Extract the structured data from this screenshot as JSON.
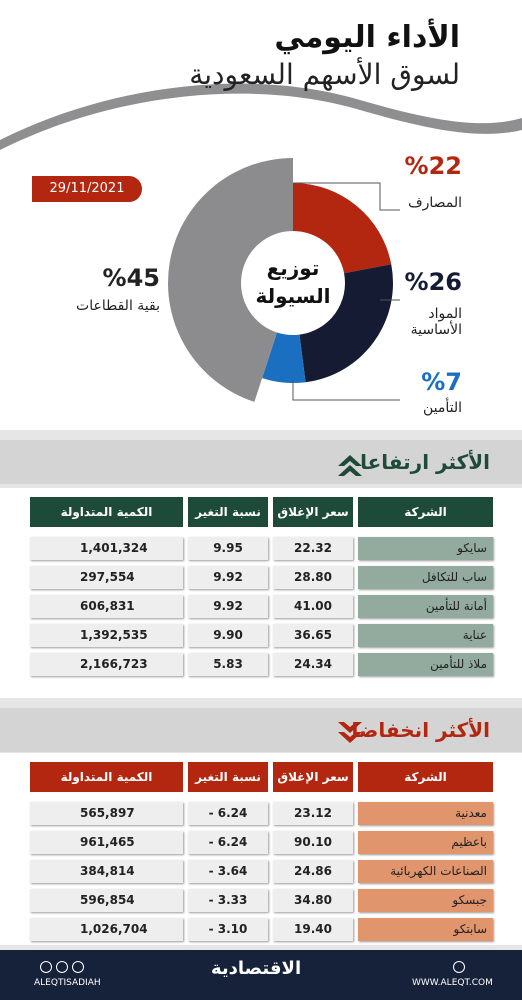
{
  "header": {
    "title": "الأداء اليومي",
    "subtitle": "لسوق الأسهم السعودية",
    "date": "29/11/2021"
  },
  "chart_data": {
    "type": "pie",
    "center_label": [
      "توزيع",
      "السيولة"
    ],
    "categories": [
      "المصارف",
      "المواد الأساسية",
      "التأمين",
      "بقية القطاعات"
    ],
    "values": [
      22,
      26,
      7,
      45
    ],
    "value_labels": [
      "%22",
      "%26",
      "%7",
      "%45"
    ],
    "colors": [
      "#b3260f",
      "#151b33",
      "#1a6fc0",
      "#8c8c8e"
    ]
  },
  "gainers": {
    "title": "الأكثر ارتفاعا",
    "columns": [
      "الكمية المتداولة",
      "نسبة التغير %",
      "سعر الإغلاق",
      "الشركة"
    ],
    "rows": [
      [
        "1,401,324",
        "9.95",
        "22.32",
        "سايكو"
      ],
      [
        "297,554",
        "9.92",
        "28.80",
        "ساب للتكافل"
      ],
      [
        "606,831",
        "9.92",
        "41.00",
        "أمانة للتأمين"
      ],
      [
        "1,392,535",
        "9.90",
        "36.65",
        "عناية"
      ],
      [
        "2,166,723",
        "5.83",
        "24.34",
        "ملاذ للتأمين"
      ]
    ]
  },
  "losers": {
    "title": "الأكثر انخفاضا",
    "columns": [
      "الكمية المتداولة",
      "نسبة التغير %",
      "سعر الإغلاق",
      "الشركة"
    ],
    "rows": [
      [
        "565,897",
        "- 6.24",
        "23.12",
        "معدنية"
      ],
      [
        "961,465",
        "- 6.24",
        "90.10",
        "باعظيم"
      ],
      [
        "384,814",
        "- 3.64",
        "24.86",
        "الصناعات الكهربائية"
      ],
      [
        "596,854",
        "- 3.33",
        "34.80",
        "جبسكو"
      ],
      [
        "1,026,704",
        "- 3.10",
        "19.40",
        "سابتكو"
      ]
    ]
  },
  "footer": {
    "handle": "ALEQTISADIAH",
    "brand": "الاقتصادية",
    "site": "WWW.ALEQT.COM"
  }
}
